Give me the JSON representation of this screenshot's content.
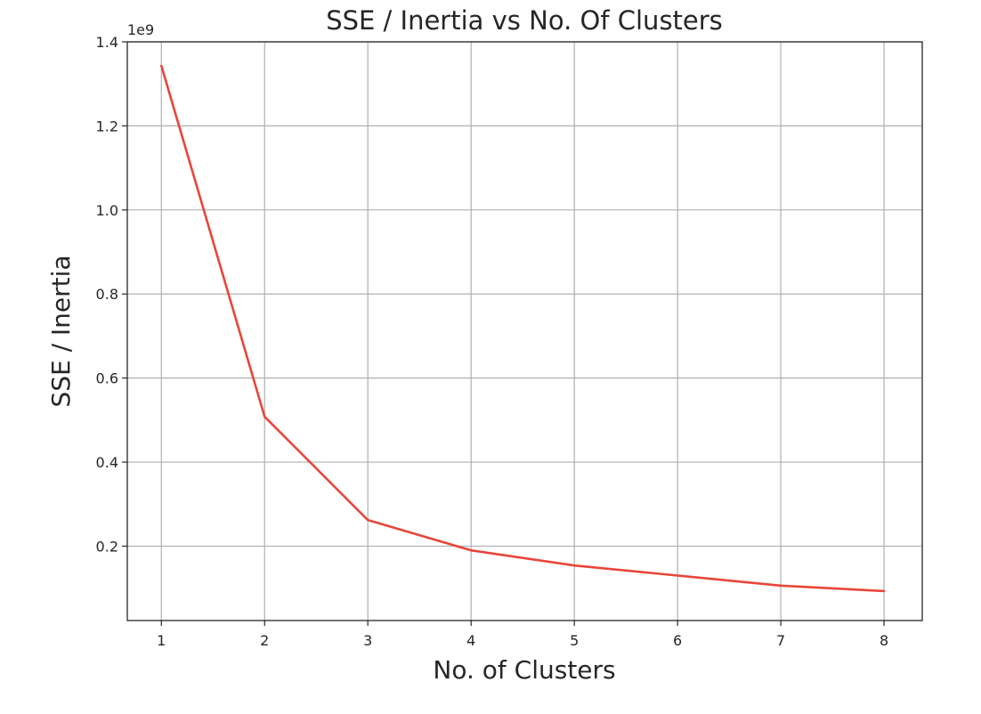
{
  "chart_data": {
    "type": "line",
    "title": "SSE / Inertia vs No. Of Clusters",
    "xlabel": "No. of Clusters",
    "ylabel": "SSE / Inertia",
    "y_offset_label": "1e9",
    "x": [
      1,
      2,
      3,
      4,
      5,
      6,
      7,
      8
    ],
    "series": [
      {
        "values": [
          1.343,
          0.508,
          0.262,
          0.19,
          0.154,
          0.13,
          0.106,
          0.093
        ]
      }
    ],
    "xlim": [
      0.67,
      8.37
    ],
    "ylim": [
      0.023,
      1.4
    ],
    "x_ticks": [
      1,
      2,
      3,
      4,
      5,
      6,
      7,
      8
    ],
    "x_tick_labels": [
      "1",
      "2",
      "3",
      "4",
      "5",
      "6",
      "7",
      "8"
    ],
    "y_ticks": [
      0.2,
      0.4,
      0.6,
      0.8,
      1.0,
      1.2,
      1.4
    ],
    "y_tick_labels": [
      "0.2",
      "0.4",
      "0.6",
      "0.8",
      "1.0",
      "1.2",
      "1.4"
    ],
    "grid": true,
    "legend": "none",
    "colors": {
      "line": "#e8463a",
      "grid": "#b0b0b0",
      "axis": "#262626",
      "text": "#262626"
    }
  }
}
